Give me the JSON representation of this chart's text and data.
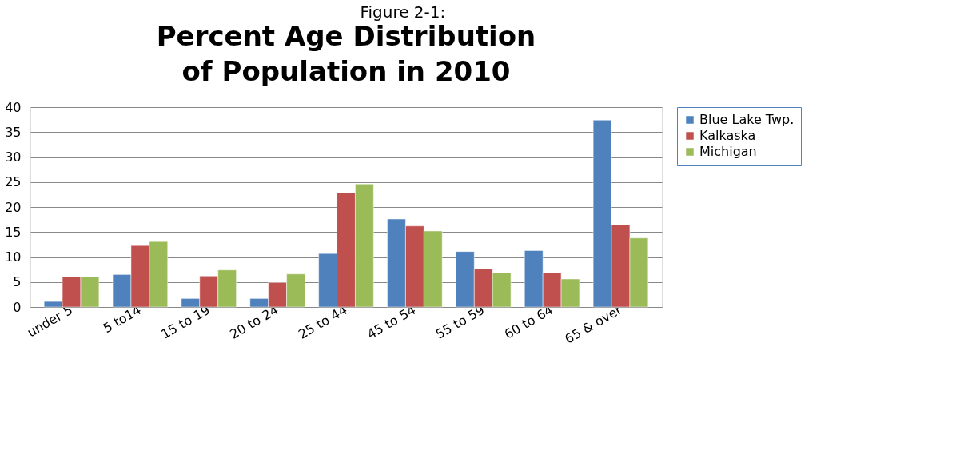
{
  "chart_data": {
    "type": "bar",
    "subtitle": "Figure 2-1:",
    "title": "Percent Age Distribution of Population in 2010",
    "categories": [
      "under 5",
      "5 to14",
      "15 to 19",
      "20 to 24",
      "25 to 44",
      "45 to 54",
      "55 to 59",
      "60 to 64",
      "65 & over"
    ],
    "series": [
      {
        "name": "Blue Lake Twp.",
        "color": "#4f81bd",
        "values": [
          1.1,
          6.5,
          1.7,
          1.7,
          10.7,
          17.6,
          11.1,
          11.3,
          37.4
        ]
      },
      {
        "name": "Kalkaska",
        "color": "#c0504d",
        "values": [
          6.0,
          12.3,
          6.2,
          4.9,
          22.8,
          16.2,
          7.6,
          6.8,
          16.4
        ]
      },
      {
        "name": "Michigan",
        "color": "#9bbb59",
        "values": [
          6.0,
          13.1,
          7.4,
          6.6,
          24.6,
          15.2,
          6.8,
          5.6,
          13.8
        ]
      }
    ],
    "ylim": [
      0,
      40
    ],
    "yticks": [
      0,
      5,
      10,
      15,
      20,
      25,
      30,
      35,
      40
    ],
    "grid": "y",
    "legend": "right"
  }
}
